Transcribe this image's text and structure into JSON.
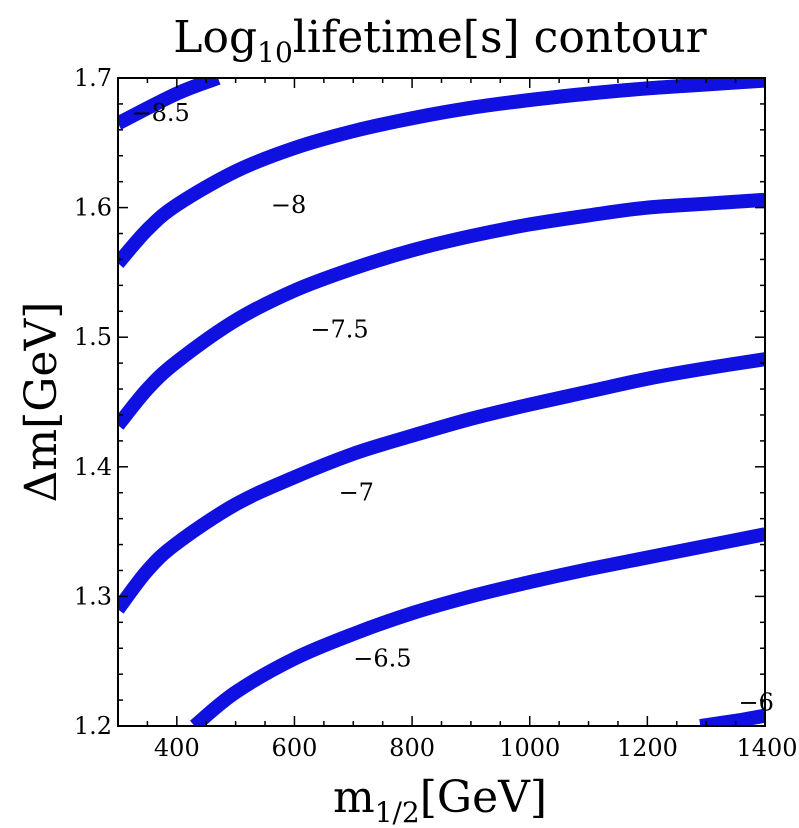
{
  "chart_data": {
    "type": "line",
    "title": {
      "prefix": "Log",
      "subscript": "10",
      "suffix": "lifetime[s] contour"
    },
    "xlabel": {
      "base": "m",
      "subscript": "1/2",
      "suffix": "[GeV]"
    },
    "ylabel": "Δm[GeV]",
    "xlim": [
      300,
      1400
    ],
    "ylim": [
      1.2,
      1.7
    ],
    "xticks": [
      400,
      600,
      800,
      1000,
      1200,
      1400
    ],
    "yticks": [
      1.2,
      1.3,
      1.4,
      1.5,
      1.6,
      1.7
    ],
    "line_color": "#1010e0",
    "grid": false,
    "series": [
      {
        "name": "−8.5",
        "x": [
          300,
          400,
          470
        ],
        "y": [
          1.665,
          1.688,
          1.7
        ],
        "label_at": [
          323,
          1.673
        ]
      },
      {
        "name": "−8",
        "x": [
          300,
          350,
          400,
          500,
          600,
          700,
          800,
          900,
          1000,
          1100,
          1200,
          1300,
          1400
        ],
        "y": [
          1.557,
          1.583,
          1.602,
          1.628,
          1.646,
          1.659,
          1.669,
          1.677,
          1.683,
          1.688,
          1.692,
          1.695,
          1.698
        ],
        "label_at": [
          560,
          1.602
        ]
      },
      {
        "name": "−7.5",
        "x": [
          300,
          350,
          400,
          500,
          600,
          700,
          800,
          900,
          1000,
          1100,
          1200,
          1300,
          1400
        ],
        "y": [
          1.432,
          1.46,
          1.481,
          1.513,
          1.536,
          1.553,
          1.567,
          1.578,
          1.587,
          1.594,
          1.6,
          1.603,
          1.606
        ],
        "label_at": [
          627,
          1.506
        ]
      },
      {
        "name": "−7",
        "x": [
          300,
          350,
          400,
          500,
          600,
          700,
          800,
          900,
          1000,
          1100,
          1200,
          1300,
          1400
        ],
        "y": [
          1.29,
          1.32,
          1.341,
          1.371,
          1.392,
          1.41,
          1.424,
          1.437,
          1.448,
          1.458,
          1.468,
          1.476,
          1.483
        ],
        "label_at": [
          675,
          1.38
        ]
      },
      {
        "name": "−6.5",
        "x": [
          430,
          500,
          600,
          700,
          800,
          900,
          1000,
          1100,
          1200,
          1300,
          1400
        ],
        "y": [
          1.2,
          1.226,
          1.252,
          1.271,
          1.287,
          1.3,
          1.311,
          1.321,
          1.33,
          1.339,
          1.348
        ],
        "label_at": [
          700,
          1.252
        ]
      },
      {
        "name": "−6",
        "x": [
          1290,
          1350,
          1400
        ],
        "y": [
          1.2,
          1.204,
          1.208
        ],
        "label_at": [
          1355,
          1.218
        ]
      }
    ]
  }
}
